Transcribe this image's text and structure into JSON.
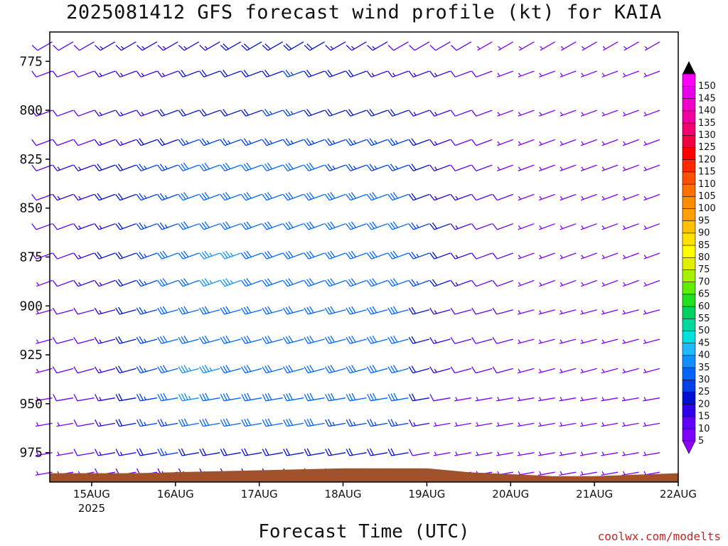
{
  "title": "2025081412 GFS forecast wind profile (kt) for KAIA",
  "x_axis_title": "Forecast Time (UTC)",
  "credit": "coolwx.com/modelts",
  "colors": {
    "terrain": "#a0522d",
    "frame": "#000000"
  },
  "chart_data": {
    "type": "wind-barb-time-height",
    "title": "2025081412 GFS forecast wind profile (kt) for KAIA",
    "xlabel": "Forecast Time (UTC)",
    "ylabel": "",
    "x_ticks": [
      "15AUG",
      "16AUG",
      "17AUG",
      "18AUG",
      "19AUG",
      "20AUG",
      "21AUG",
      "22AUG"
    ],
    "x_ticks_sub": [
      "2025",
      "",
      "",
      "",
      "",
      "",
      "",
      ""
    ],
    "x_range_days": [
      14.5,
      22.0
    ],
    "x_step_hours": 6,
    "y_ticks": [
      775,
      800,
      825,
      850,
      875,
      900,
      925,
      950,
      975
    ],
    "y_range_hPa": [
      990,
      760
    ],
    "levels_hPa": [
      775,
      800,
      825,
      850,
      875,
      900,
      925,
      950,
      975
    ],
    "barb_rows": [
      {
        "level": 765,
        "dir": 240,
        "speed": [
          [
            14.5,
            12
          ],
          [
            17.5,
            22
          ],
          [
            19.5,
            10
          ],
          [
            20.4,
            5
          ],
          [
            22,
            10
          ]
        ]
      },
      {
        "level": 780,
        "dir": 250,
        "speed": [
          [
            14.5,
            10
          ],
          [
            15.8,
            18
          ],
          [
            17.5,
            25
          ],
          [
            19.3,
            15
          ],
          [
            20.5,
            5
          ],
          [
            22,
            10
          ]
        ]
      },
      {
        "level": 800,
        "dir": 250,
        "speed": [
          [
            14.5,
            10
          ],
          [
            16,
            20
          ],
          [
            17.3,
            25
          ],
          [
            18.8,
            22
          ],
          [
            19.5,
            12
          ],
          [
            20.5,
            6
          ],
          [
            22,
            10
          ]
        ]
      },
      {
        "level": 815,
        "dir": 250,
        "speed": [
          [
            14.5,
            10
          ],
          [
            16.3,
            25
          ],
          [
            17.5,
            28
          ],
          [
            18.8,
            25
          ],
          [
            19.5,
            12
          ],
          [
            20.5,
            6
          ],
          [
            22,
            10
          ]
        ]
      },
      {
        "level": 828,
        "dir": 250,
        "speed": [
          [
            14.5,
            12
          ],
          [
            16.3,
            30
          ],
          [
            17.5,
            30
          ],
          [
            18.8,
            28
          ],
          [
            19.5,
            12
          ],
          [
            20.5,
            6
          ],
          [
            22,
            10
          ]
        ]
      },
      {
        "level": 843,
        "dir": 250,
        "speed": [
          [
            14.5,
            12
          ],
          [
            16.4,
            33
          ],
          [
            17.5,
            32
          ],
          [
            18.8,
            30
          ],
          [
            19.3,
            18
          ],
          [
            20.5,
            6
          ],
          [
            22,
            10
          ]
        ]
      },
      {
        "level": 858,
        "dir": 250,
        "speed": [
          [
            14.5,
            10
          ],
          [
            16.4,
            33
          ],
          [
            17.5,
            32
          ],
          [
            18.8,
            30
          ],
          [
            19.3,
            20
          ],
          [
            20.5,
            6
          ],
          [
            22,
            10
          ]
        ]
      },
      {
        "level": 873,
        "dir": 250,
        "speed": [
          [
            14.5,
            10
          ],
          [
            16.4,
            35
          ],
          [
            17.5,
            34
          ],
          [
            18.8,
            32
          ],
          [
            19.3,
            20
          ],
          [
            20.5,
            6
          ],
          [
            22,
            10
          ]
        ]
      },
      {
        "level": 887,
        "dir": 250,
        "speed": [
          [
            14.5,
            8
          ],
          [
            16.4,
            35
          ],
          [
            17.5,
            34
          ],
          [
            18.8,
            33
          ],
          [
            19.3,
            20
          ],
          [
            20.5,
            6
          ],
          [
            22,
            10
          ]
        ]
      },
      {
        "level": 902,
        "dir": 255,
        "speed": [
          [
            14.5,
            6
          ],
          [
            16.2,
            33
          ],
          [
            17.5,
            32
          ],
          [
            18.7,
            33
          ],
          [
            19.3,
            15
          ],
          [
            20.5,
            6
          ],
          [
            22,
            10
          ]
        ]
      },
      {
        "level": 917,
        "dir": 255,
        "speed": [
          [
            14.5,
            5
          ],
          [
            16.2,
            33
          ],
          [
            17.5,
            32
          ],
          [
            18.8,
            32
          ],
          [
            19.3,
            15
          ],
          [
            20.5,
            6
          ],
          [
            22,
            10
          ]
        ]
      },
      {
        "level": 932,
        "dir": 255,
        "speed": [
          [
            14.5,
            5
          ],
          [
            16.3,
            35
          ],
          [
            17.5,
            33
          ],
          [
            18.8,
            32
          ],
          [
            19.3,
            15
          ],
          [
            20.5,
            6
          ],
          [
            22,
            10
          ]
        ]
      },
      {
        "level": 947,
        "dir": 260,
        "speed": [
          [
            14.5,
            5
          ],
          [
            16.2,
            35
          ],
          [
            17.5,
            33
          ],
          [
            18.8,
            32
          ],
          [
            19.3,
            10
          ],
          [
            20.5,
            6
          ],
          [
            22,
            10
          ]
        ]
      },
      {
        "level": 960,
        "dir": 260,
        "speed": [
          [
            14.5,
            5
          ],
          [
            16.2,
            32
          ],
          [
            17.5,
            30
          ],
          [
            18.8,
            28
          ],
          [
            19.3,
            8
          ],
          [
            20.5,
            6
          ],
          [
            22,
            10
          ]
        ]
      },
      {
        "level": 975,
        "dir": 260,
        "speed": [
          [
            14.5,
            5
          ],
          [
            16,
            25
          ],
          [
            17.5,
            22
          ],
          [
            18.8,
            20
          ],
          [
            19.3,
            6
          ],
          [
            20.5,
            6
          ],
          [
            22,
            10
          ]
        ]
      },
      {
        "level": 985,
        "dir": 260,
        "speed": [
          [
            14.5,
            5
          ],
          [
            16,
            15
          ],
          [
            17.5,
            15
          ],
          [
            18.8,
            15
          ],
          [
            19.5,
            5
          ],
          [
            22,
            8
          ]
        ]
      }
    ],
    "surface_pressure_hPa": [
      [
        14.5,
        985.5
      ],
      [
        15.5,
        985.5
      ],
      [
        16,
        985
      ],
      [
        17,
        984
      ],
      [
        18,
        983
      ],
      [
        19,
        983
      ],
      [
        19.5,
        985
      ],
      [
        20.5,
        987
      ],
      [
        21,
        987
      ],
      [
        22,
        985.5
      ]
    ],
    "colorbar": {
      "label_values": [
        5,
        10,
        15,
        20,
        25,
        30,
        35,
        40,
        45,
        50,
        55,
        60,
        65,
        70,
        75,
        80,
        85,
        90,
        95,
        100,
        105,
        110,
        115,
        120,
        125,
        130,
        135,
        140,
        145,
        150
      ],
      "colors": [
        "#8000ff",
        "#6000ff",
        "#3000e8",
        "#0010d0",
        "#0040e8",
        "#0066ff",
        "#1090ff",
        "#22b8ff",
        "#00e0e0",
        "#00d8a0",
        "#00d060",
        "#20e020",
        "#60ee00",
        "#a8f000",
        "#e0f000",
        "#ffff00",
        "#ffe000",
        "#ffc000",
        "#ffa000",
        "#ff8c00",
        "#ff7000",
        "#ff5000",
        "#ff2a00",
        "#ff0000",
        "#f00040",
        "#f00070",
        "#f000a0",
        "#f000c8",
        "#e800e8",
        "#ff00ff"
      ],
      "top_arrow_color": "#000000",
      "bottom_arrow_color": "#9000ff"
    }
  }
}
